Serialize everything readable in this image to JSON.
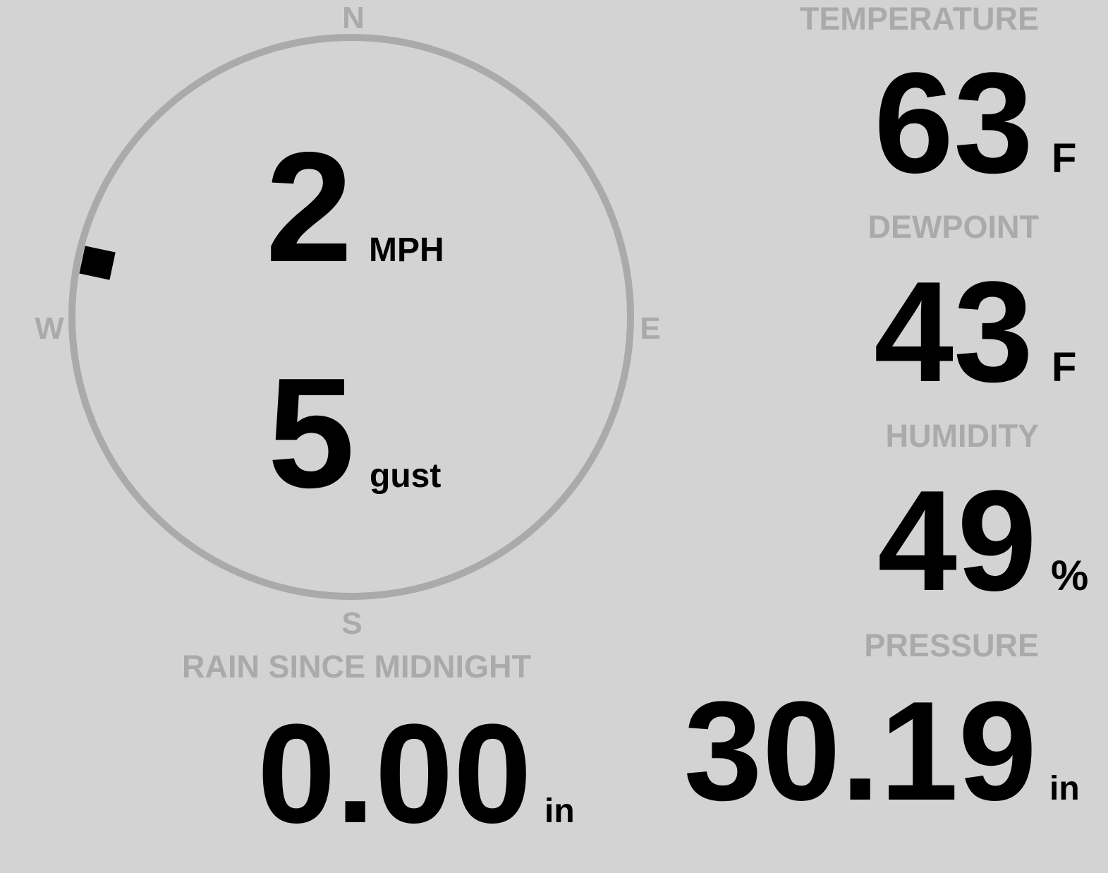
{
  "wind": {
    "speed": "2",
    "speed_unit": "MPH",
    "gust": "5",
    "gust_label": "gust",
    "direction_degrees": 282,
    "compass": {
      "n": "N",
      "e": "E",
      "s": "S",
      "w": "W"
    }
  },
  "temperature": {
    "label": "TEMPERATURE",
    "value": "63",
    "unit": "F"
  },
  "dewpoint": {
    "label": "DEWPOINT",
    "value": "43",
    "unit": "F"
  },
  "humidity": {
    "label": "HUMIDITY",
    "value": "49",
    "unit": "%"
  },
  "rain": {
    "label": "RAIN SINCE MIDNIGHT",
    "value": "0.00",
    "unit": "in"
  },
  "pressure": {
    "label": "PRESSURE",
    "value": "30.19",
    "unit": "in"
  },
  "colors": {
    "background": "#d3d3d3",
    "label": "#aaaaaa",
    "value": "#000000",
    "ring": "#aaaaaa"
  }
}
